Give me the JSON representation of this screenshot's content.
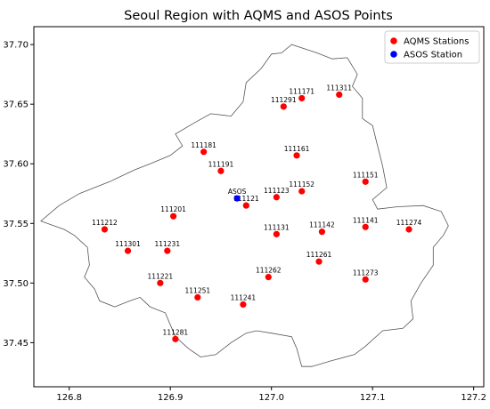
{
  "chart_data": {
    "type": "scatter",
    "title": "Seoul Region with AQMS and ASOS Points",
    "xlabel": "",
    "ylabel": "",
    "xlim": [
      126.765,
      127.21
    ],
    "ylim": [
      37.413,
      37.715
    ],
    "x_ticks": [
      126.8,
      126.9,
      127.0,
      127.1,
      127.2
    ],
    "x_tick_labels": [
      "126.8",
      "126.9",
      "127.0",
      "127.1",
      "127.2"
    ],
    "y_ticks": [
      37.45,
      37.5,
      37.55,
      37.6,
      37.65,
      37.7
    ],
    "y_tick_labels": [
      "37.45",
      "37.50",
      "37.55",
      "37.60",
      "37.65",
      "37.70"
    ],
    "grid": false,
    "legend_position": "top-right",
    "series": [
      {
        "name": "AQMS Stations",
        "color": "#ff0000",
        "points": [
          {
            "label": "111311",
            "x": 127.067,
            "y": 37.658
          },
          {
            "label": "111171",
            "x": 127.03,
            "y": 37.655
          },
          {
            "label": "111291",
            "x": 127.012,
            "y": 37.648
          },
          {
            "label": "111181",
            "x": 126.933,
            "y": 37.61
          },
          {
            "label": "111161",
            "x": 127.025,
            "y": 37.607
          },
          {
            "label": "111191",
            "x": 126.95,
            "y": 37.594
          },
          {
            "label": "111151",
            "x": 127.093,
            "y": 37.585
          },
          {
            "label": "111152",
            "x": 127.03,
            "y": 37.577
          },
          {
            "label": "111123",
            "x": 127.005,
            "y": 37.572
          },
          {
            "label": "111121",
            "x": 126.975,
            "y": 37.565
          },
          {
            "label": "111201",
            "x": 126.903,
            "y": 37.556
          },
          {
            "label": "111131",
            "x": 127.005,
            "y": 37.541
          },
          {
            "label": "111142",
            "x": 127.05,
            "y": 37.543
          },
          {
            "label": "111141",
            "x": 127.093,
            "y": 37.547
          },
          {
            "label": "111274",
            "x": 127.136,
            "y": 37.545
          },
          {
            "label": "111212",
            "x": 126.835,
            "y": 37.545
          },
          {
            "label": "111301",
            "x": 126.858,
            "y": 37.527
          },
          {
            "label": "111231",
            "x": 126.897,
            "y": 37.527
          },
          {
            "label": "111261",
            "x": 127.047,
            "y": 37.518
          },
          {
            "label": "111262",
            "x": 126.997,
            "y": 37.505
          },
          {
            "label": "111273",
            "x": 127.093,
            "y": 37.503
          },
          {
            "label": "111221",
            "x": 126.89,
            "y": 37.5
          },
          {
            "label": "111251",
            "x": 126.927,
            "y": 37.488
          },
          {
            "label": "111241",
            "x": 126.972,
            "y": 37.482
          },
          {
            "label": "111281",
            "x": 126.905,
            "y": 37.453
          }
        ]
      },
      {
        "name": "ASOS Station",
        "color": "#0000ff",
        "points": [
          {
            "label": "ASOS",
            "x": 126.966,
            "y": 37.571
          }
        ]
      }
    ],
    "boundary": [
      [
        127.0,
        37.692
      ],
      [
        127.01,
        37.693
      ],
      [
        127.02,
        37.7
      ],
      [
        127.045,
        37.693
      ],
      [
        127.06,
        37.688
      ],
      [
        127.075,
        37.689
      ],
      [
        127.085,
        37.675
      ],
      [
        127.08,
        37.665
      ],
      [
        127.09,
        37.655
      ],
      [
        127.09,
        37.638
      ],
      [
        127.1,
        37.632
      ],
      [
        127.105,
        37.615
      ],
      [
        127.11,
        37.598
      ],
      [
        127.114,
        37.58
      ],
      [
        127.1,
        37.57
      ],
      [
        127.105,
        37.562
      ],
      [
        127.125,
        37.564
      ],
      [
        127.15,
        37.565
      ],
      [
        127.168,
        37.56
      ],
      [
        127.175,
        37.548
      ],
      [
        127.17,
        37.54
      ],
      [
        127.16,
        37.53
      ],
      [
        127.16,
        37.515
      ],
      [
        127.148,
        37.5
      ],
      [
        127.138,
        37.485
      ],
      [
        127.14,
        37.47
      ],
      [
        127.13,
        37.462
      ],
      [
        127.11,
        37.46
      ],
      [
        127.093,
        37.447
      ],
      [
        127.082,
        37.44
      ],
      [
        127.06,
        37.435
      ],
      [
        127.04,
        37.43
      ],
      [
        127.03,
        37.43
      ],
      [
        127.025,
        37.445
      ],
      [
        127.02,
        37.455
      ],
      [
        127.0,
        37.458
      ],
      [
        126.985,
        37.46
      ],
      [
        126.975,
        37.458
      ],
      [
        126.96,
        37.45
      ],
      [
        126.945,
        37.44
      ],
      [
        126.93,
        37.438
      ],
      [
        126.918,
        37.445
      ],
      [
        126.905,
        37.455
      ],
      [
        126.9,
        37.465
      ],
      [
        126.895,
        37.475
      ],
      [
        126.88,
        37.48
      ],
      [
        126.87,
        37.488
      ],
      [
        126.86,
        37.485
      ],
      [
        126.845,
        37.48
      ],
      [
        126.83,
        37.485
      ],
      [
        126.825,
        37.495
      ],
      [
        126.815,
        37.505
      ],
      [
        126.82,
        37.515
      ],
      [
        126.818,
        37.53
      ],
      [
        126.805,
        37.54
      ],
      [
        126.795,
        37.545
      ],
      [
        126.785,
        37.548
      ],
      [
        126.772,
        37.552
      ],
      [
        126.79,
        37.565
      ],
      [
        126.81,
        37.575
      ],
      [
        126.84,
        37.585
      ],
      [
        126.865,
        37.595
      ],
      [
        126.88,
        37.6
      ],
      [
        126.9,
        37.607
      ],
      [
        126.912,
        37.615
      ],
      [
        126.905,
        37.625
      ],
      [
        126.925,
        37.635
      ],
      [
        126.94,
        37.642
      ],
      [
        126.96,
        37.64
      ],
      [
        126.972,
        37.652
      ],
      [
        126.975,
        37.668
      ],
      [
        126.99,
        37.68
      ],
      [
        127.0,
        37.692
      ]
    ]
  }
}
